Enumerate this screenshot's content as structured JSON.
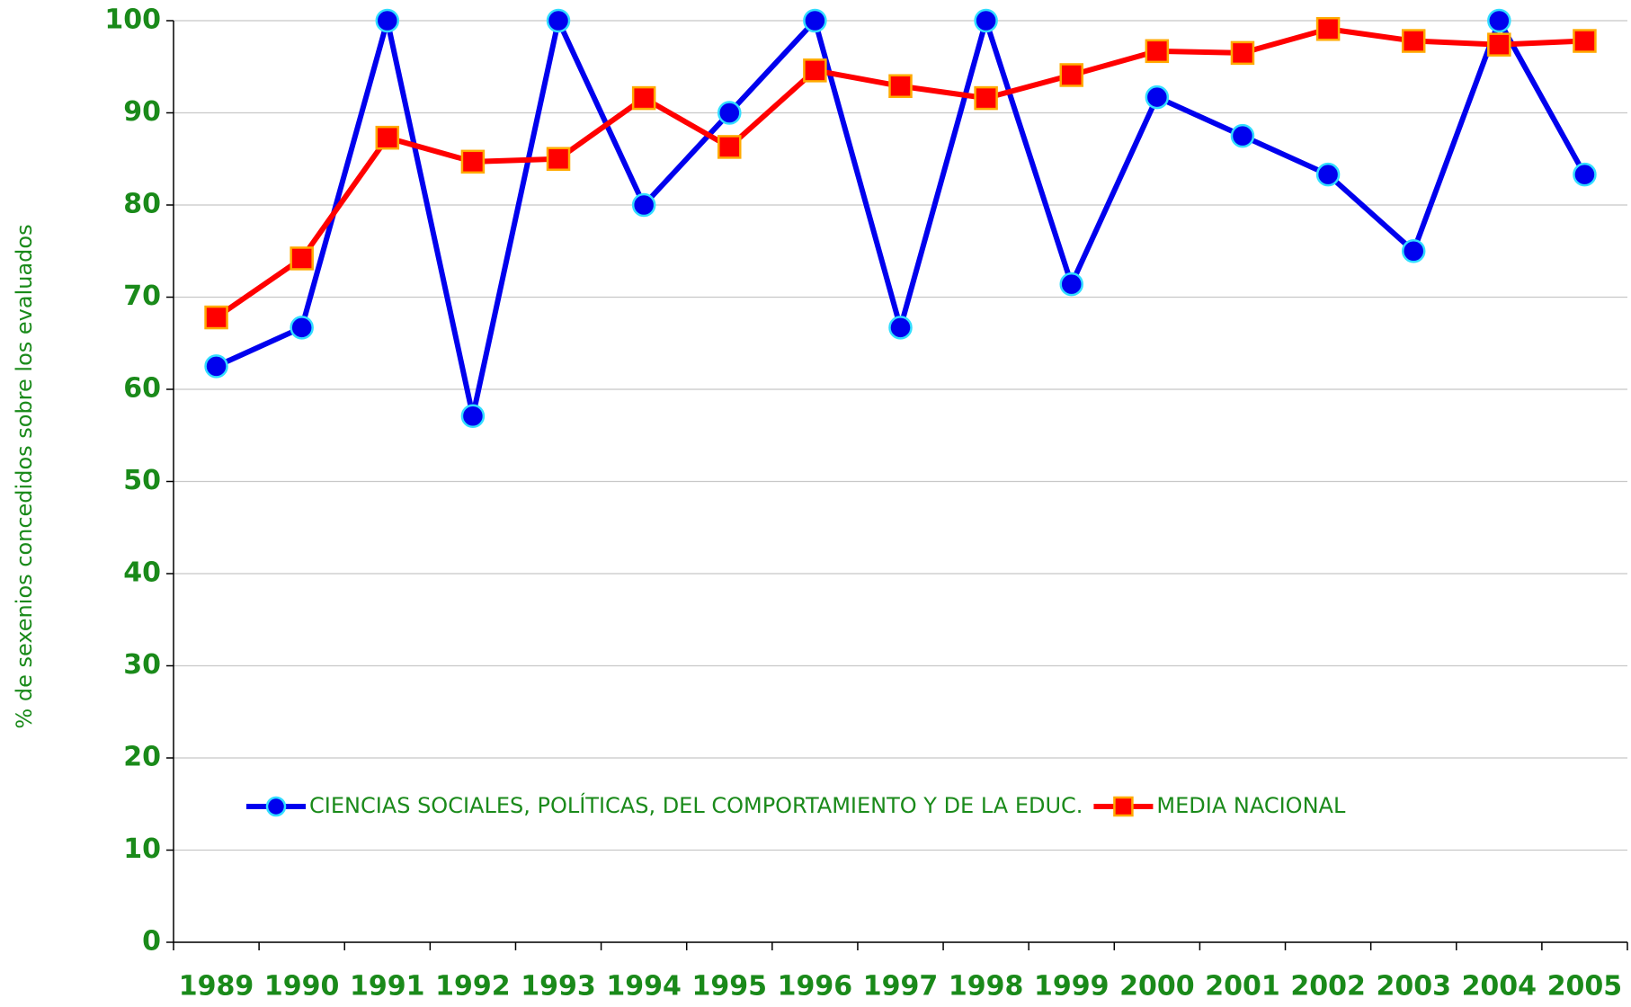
{
  "chart_data": {
    "type": "line",
    "y_label": "% de sexenios concedidos sobre los evaluados",
    "categories": [
      "1989",
      "1990",
      "1991",
      "1992",
      "1993",
      "1994",
      "1995",
      "1996",
      "1997",
      "1998",
      "1999",
      "2000",
      "2001",
      "2002",
      "2003",
      "2004",
      "2005"
    ],
    "series": [
      {
        "name": "CIENCIAS SOCIALES, POLÍTICAS, DEL COMPORTAMIENTO Y DE LA EDUC.",
        "color": "#0000ee",
        "marker": "circle",
        "values": [
          62.5,
          66.7,
          100,
          57.1,
          100,
          80,
          90,
          100,
          66.7,
          100,
          71.4,
          91.7,
          87.5,
          83.3,
          75,
          100,
          83.3
        ]
      },
      {
        "name": "MEDIA NACIONAL",
        "color": "#ff0000",
        "marker": "square",
        "values": [
          67.8,
          74.2,
          87.3,
          84.7,
          85,
          91.6,
          86.3,
          94.6,
          92.9,
          91.6,
          94.1,
          96.7,
          96.5,
          99.1,
          97.8,
          97.4,
          97.8
        ]
      }
    ],
    "ylim": [
      0,
      100
    ],
    "yticks": [
      0,
      10,
      20,
      30,
      40,
      50,
      60,
      70,
      80,
      90,
      100
    ],
    "grid": true
  }
}
